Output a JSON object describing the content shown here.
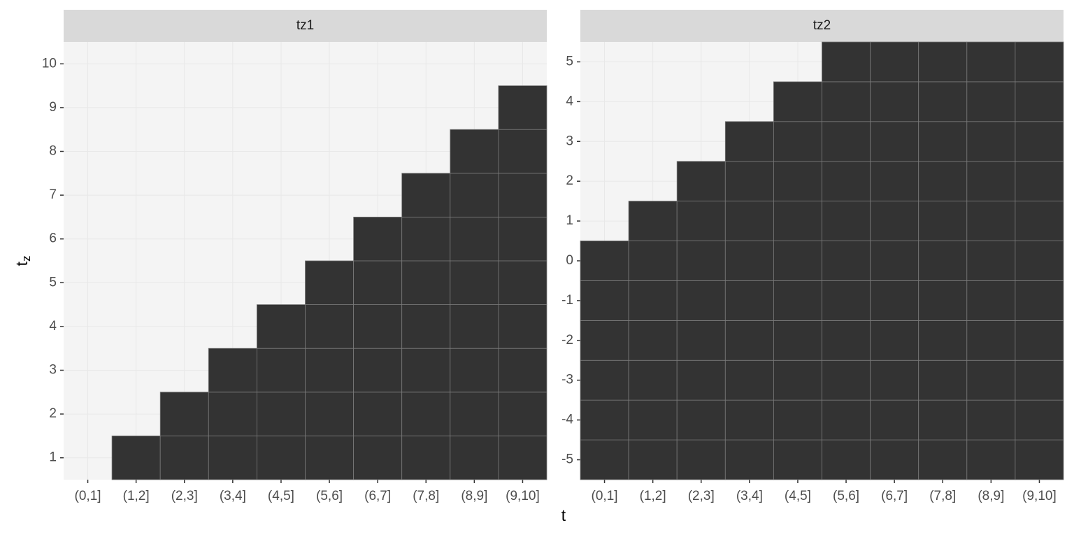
{
  "chart_data": [
    {
      "type": "tile",
      "facet": "tz1",
      "color": "#333333",
      "categories": [
        "(0,1]",
        "(1,2]",
        "(2,3]",
        "(3,4]",
        "(4,5]",
        "(5,6]",
        "(6,7]",
        "(7,8]",
        "(8,9]",
        "(9,10]"
      ],
      "ylim": [
        0.5,
        10.5
      ],
      "yticks": [
        1,
        2,
        3,
        4,
        5,
        6,
        7,
        8,
        9,
        10
      ],
      "columns": [
        [],
        [
          1
        ],
        [
          1,
          2
        ],
        [
          1,
          2,
          3
        ],
        [
          1,
          2,
          3,
          4
        ],
        [
          1,
          2,
          3,
          4,
          5
        ],
        [
          1,
          2,
          3,
          4,
          5,
          6
        ],
        [
          1,
          2,
          3,
          4,
          5,
          6,
          7
        ],
        [
          1,
          2,
          3,
          4,
          5,
          6,
          7,
          8
        ],
        [
          1,
          2,
          3,
          4,
          5,
          6,
          7,
          8,
          9
        ]
      ]
    },
    {
      "type": "tile",
      "facet": "tz2",
      "color": "#333333",
      "categories": [
        "(0,1]",
        "(1,2]",
        "(2,3]",
        "(3,4]",
        "(4,5]",
        "(5,6]",
        "(6,7]",
        "(7,8]",
        "(8,9]",
        "(9,10]"
      ],
      "ylim": [
        -5.5,
        5.5
      ],
      "yticks": [
        -5,
        -4,
        -3,
        -2,
        -1,
        0,
        1,
        2,
        3,
        4,
        5
      ],
      "columns": [
        [
          -5,
          -4,
          -3,
          -2,
          -1,
          0
        ],
        [
          -5,
          -4,
          -3,
          -2,
          -1,
          0,
          1
        ],
        [
          -5,
          -4,
          -3,
          -2,
          -1,
          0,
          1,
          2
        ],
        [
          -5,
          -4,
          -3,
          -2,
          -1,
          0,
          1,
          2,
          3
        ],
        [
          -5,
          -4,
          -3,
          -2,
          -1,
          0,
          1,
          2,
          3,
          4
        ],
        [
          -5,
          -4,
          -3,
          -2,
          -1,
          0,
          1,
          2,
          3,
          4,
          5
        ],
        [
          -5,
          -4,
          -3,
          -2,
          -1,
          0,
          1,
          2,
          3,
          4,
          5
        ],
        [
          -5,
          -4,
          -3,
          -2,
          -1,
          0,
          1,
          2,
          3,
          4,
          5
        ],
        [
          -5,
          -4,
          -3,
          -2,
          -1,
          0,
          1,
          2,
          3,
          4,
          5
        ],
        [
          -5,
          -4,
          -3,
          -2,
          -1,
          0,
          1,
          2,
          3,
          4,
          5
        ]
      ]
    }
  ],
  "x_label": "t",
  "y_label": "t",
  "y_label_subscript": "z"
}
